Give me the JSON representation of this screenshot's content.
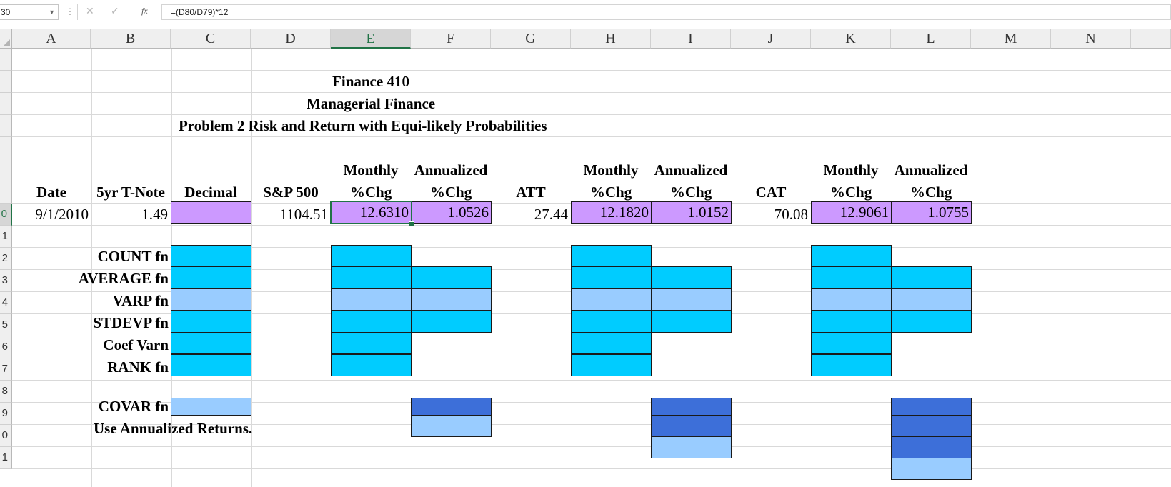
{
  "formula_bar": {
    "name_box": "30",
    "fx_label": "fx",
    "cancel_label": "✕",
    "enter_label": "✓",
    "formula": "=(D80/D79)*12"
  },
  "columns": [
    "A",
    "B",
    "C",
    "D",
    "E",
    "F",
    "G",
    "H",
    "I",
    "J",
    "K",
    "L",
    "M",
    "N"
  ],
  "row_labels": [
    "",
    "",
    "",
    "",
    "",
    "",
    "",
    "0",
    "1",
    "2",
    "3",
    "4",
    "5",
    "6",
    "7",
    "8",
    "9",
    "0",
    "1"
  ],
  "titles": {
    "line1": "Finance 410",
    "line2": "Managerial Finance",
    "line3": "Problem 2 Risk and Return with Equi-likely Probabilities"
  },
  "headers_top": {
    "e": "Monthly",
    "f": "Annualized",
    "h": "Monthly",
    "i": "Annualized",
    "k": "Monthly",
    "l": "Annualized"
  },
  "headers": {
    "a": "Date",
    "b": "5yr T-Note",
    "c": "Decimal",
    "d": "S&P 500",
    "e": "%Chg",
    "f": "%Chg",
    "g": "ATT",
    "h": "%Chg",
    "i": "%Chg",
    "j": "CAT",
    "k": "%Chg",
    "l": "%Chg"
  },
  "data_row": {
    "a": "9/1/2010",
    "b": "1.49",
    "c": "",
    "d": "1104.51",
    "e": "12.6310",
    "f": "1.0526",
    "g": "27.44",
    "h": "12.1820",
    "i": "1.0152",
    "j": "70.08",
    "k": "12.9061",
    "l": "1.0755"
  },
  "labels": {
    "count": "COUNT fn",
    "average": "AVERAGE fn",
    "varp": "VARP fn",
    "stdevp": "STDEVP fn",
    "coef": "Coef Varn",
    "rank": "RANK fn",
    "covar": "COVAR fn",
    "note": "Use Annualized Returns."
  },
  "colors": {
    "purple": "#cc99ff",
    "cyan": "#00ccff",
    "light_blue": "#99ccff",
    "royal_blue": "#3d6fd9",
    "excel_green": "#217346"
  }
}
